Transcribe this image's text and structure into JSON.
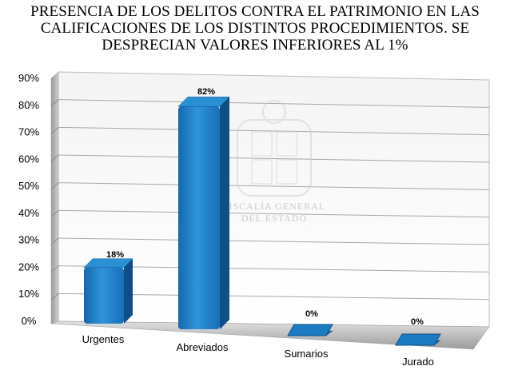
{
  "title": [
    "PRESENCIA DE LOS DELITOS CONTRA EL PATRIMONIO EN LAS",
    "CALIFICACIONES DE LOS DISTINTOS PROCEDIMIENTOS. SE",
    "DESPRECIAN VALORES INFERIORES AL 1%"
  ],
  "watermark": [
    "FISCALÍA GENERAL",
    "DEL ESTADO"
  ],
  "chart_data": {
    "type": "bar",
    "categories": [
      "Urgentes",
      "Abreviados",
      "Sumarios",
      "Jurado"
    ],
    "values": [
      18,
      82,
      0,
      0
    ],
    "data_labels": [
      "18%",
      "82%",
      "0%",
      "0%"
    ],
    "ylim": [
      0,
      90
    ],
    "yticks": [
      "0%",
      "10%",
      "20%",
      "30%",
      "40%",
      "50%",
      "60%",
      "70%",
      "80%",
      "90%"
    ],
    "grid": true,
    "bar_color": "#1a7bc2",
    "bar_side_color": "#0d4f86",
    "bar_top_color": "#2a90d6",
    "three_d": true
  }
}
